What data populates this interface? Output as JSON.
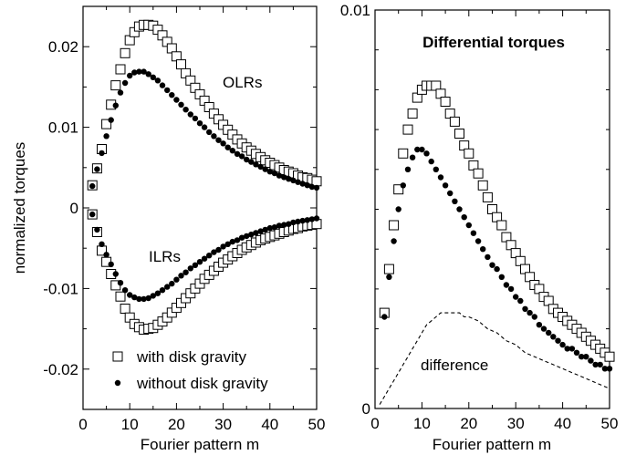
{
  "chart_data": [
    {
      "type": "scatter",
      "title": "",
      "xlabel": "Fourier pattern m",
      "ylabel": "normalized torques",
      "xlim": [
        0,
        50
      ],
      "ylim": [
        -0.025,
        0.025
      ],
      "xticks": [
        0,
        10,
        20,
        30,
        40,
        50
      ],
      "yticks": [
        -0.02,
        -0.01,
        0,
        0.01,
        0.02
      ],
      "xtick_labels": [
        "0",
        "10",
        "20",
        "30",
        "40",
        "50"
      ],
      "ytick_labels": [
        "-0.02",
        "-0.01",
        "0",
        "0.01",
        "0.02"
      ],
      "grid": false,
      "legend": {
        "position": "bottom-left",
        "entries": [
          {
            "label": "with disk gravity",
            "marker": "open-square"
          },
          {
            "label": "without disk gravity",
            "marker": "filled-circle"
          }
        ]
      },
      "annotations": [
        "OLRs",
        "ILRs"
      ],
      "series": [
        {
          "name": "with disk gravity",
          "group": "OLRs",
          "marker": "open-square",
          "x": [
            2,
            3,
            4,
            5,
            6,
            7,
            8,
            9,
            10,
            11,
            12,
            13,
            14,
            15,
            16,
            17,
            18,
            19,
            20,
            21,
            22,
            23,
            24,
            25,
            26,
            27,
            28,
            29,
            30,
            31,
            32,
            33,
            34,
            35,
            36,
            37,
            38,
            39,
            40,
            41,
            42,
            43,
            44,
            45,
            46,
            47,
            48,
            49,
            50
          ],
          "y": [
            0.0028,
            0.0049,
            0.0073,
            0.0104,
            0.0128,
            0.0152,
            0.0172,
            0.0192,
            0.0208,
            0.0218,
            0.0225,
            0.0227,
            0.0227,
            0.0226,
            0.0221,
            0.0214,
            0.0206,
            0.0198,
            0.0188,
            0.0178,
            0.0167,
            0.0158,
            0.0149,
            0.0141,
            0.0133,
            0.0125,
            0.0117,
            0.011,
            0.0103,
            0.0097,
            0.0091,
            0.0085,
            0.008,
            0.0075,
            0.0071,
            0.0067,
            0.0063,
            0.0059,
            0.0056,
            0.0053,
            0.005,
            0.0047,
            0.0045,
            0.0043,
            0.004,
            0.0038,
            0.0037,
            0.0035,
            0.0033
          ]
        },
        {
          "name": "without disk gravity",
          "group": "OLRs",
          "marker": "filled-circle",
          "x": [
            2,
            3,
            4,
            5,
            6,
            7,
            8,
            9,
            10,
            11,
            12,
            13,
            14,
            15,
            16,
            17,
            18,
            19,
            20,
            21,
            22,
            23,
            24,
            25,
            26,
            27,
            28,
            29,
            30,
            31,
            32,
            33,
            34,
            35,
            36,
            37,
            38,
            39,
            40,
            41,
            42,
            43,
            44,
            45,
            46,
            47,
            48,
            49,
            50
          ],
          "y": [
            0.0027,
            0.0048,
            0.0068,
            0.0089,
            0.0109,
            0.0127,
            0.0143,
            0.0155,
            0.0164,
            0.0168,
            0.0169,
            0.0169,
            0.0166,
            0.0162,
            0.0158,
            0.0152,
            0.0146,
            0.014,
            0.0134,
            0.0128,
            0.0122,
            0.0116,
            0.0111,
            0.0105,
            0.01,
            0.0094,
            0.0089,
            0.0084,
            0.008,
            0.0075,
            0.0071,
            0.0067,
            0.0064,
            0.006,
            0.0057,
            0.0054,
            0.0051,
            0.0048,
            0.0045,
            0.0043,
            0.004,
            0.0038,
            0.0036,
            0.0034,
            0.0032,
            0.003,
            0.0028,
            0.0026,
            0.0025
          ]
        },
        {
          "name": "with disk gravity",
          "group": "ILRs",
          "marker": "open-square",
          "x": [
            2,
            3,
            4,
            5,
            6,
            7,
            8,
            9,
            10,
            11,
            12,
            13,
            14,
            15,
            16,
            17,
            18,
            19,
            20,
            21,
            22,
            23,
            24,
            25,
            26,
            27,
            28,
            29,
            30,
            31,
            32,
            33,
            34,
            35,
            36,
            37,
            38,
            39,
            40,
            41,
            42,
            43,
            44,
            45,
            46,
            47,
            48,
            49,
            50
          ],
          "y": [
            -0.0008,
            -0.003,
            -0.0053,
            -0.0067,
            -0.0082,
            -0.0096,
            -0.011,
            -0.0125,
            -0.0136,
            -0.0144,
            -0.0148,
            -0.0151,
            -0.015,
            -0.0149,
            -0.0145,
            -0.0141,
            -0.0136,
            -0.013,
            -0.0124,
            -0.0118,
            -0.0112,
            -0.0106,
            -0.01,
            -0.0094,
            -0.0088,
            -0.0083,
            -0.0078,
            -0.0073,
            -0.0068,
            -0.0064,
            -0.006,
            -0.0056,
            -0.0052,
            -0.0049,
            -0.0046,
            -0.0043,
            -0.004,
            -0.0038,
            -0.0036,
            -0.0034,
            -0.0032,
            -0.003,
            -0.0028,
            -0.0026,
            -0.0025,
            -0.0023,
            -0.0022,
            -0.0021,
            -0.002
          ]
        },
        {
          "name": "without disk gravity",
          "group": "ILRs",
          "marker": "filled-circle",
          "x": [
            2,
            3,
            4,
            5,
            6,
            7,
            8,
            9,
            10,
            11,
            12,
            13,
            14,
            15,
            16,
            17,
            18,
            19,
            20,
            21,
            22,
            23,
            24,
            25,
            26,
            27,
            28,
            29,
            30,
            31,
            32,
            33,
            34,
            35,
            36,
            37,
            38,
            39,
            40,
            41,
            42,
            43,
            44,
            45,
            46,
            47,
            48,
            49,
            50
          ],
          "y": [
            -0.0008,
            -0.0027,
            -0.0045,
            -0.0058,
            -0.007,
            -0.0082,
            -0.0093,
            -0.0102,
            -0.0108,
            -0.0111,
            -0.0113,
            -0.0113,
            -0.0112,
            -0.0109,
            -0.0106,
            -0.0102,
            -0.0098,
            -0.0094,
            -0.0089,
            -0.0084,
            -0.008,
            -0.0075,
            -0.0071,
            -0.0067,
            -0.0063,
            -0.0059,
            -0.0055,
            -0.0052,
            -0.0048,
            -0.0045,
            -0.0042,
            -0.004,
            -0.0037,
            -0.0035,
            -0.0033,
            -0.0031,
            -0.0029,
            -0.0027,
            -0.0025,
            -0.0024,
            -0.0022,
            -0.0021,
            -0.002,
            -0.0018,
            -0.0017,
            -0.0016,
            -0.0015,
            -0.0014,
            -0.0013
          ]
        }
      ]
    },
    {
      "type": "scatter",
      "title": "Differential torques",
      "xlabel": "Fourier pattern m",
      "ylabel": "",
      "xlim": [
        0,
        50
      ],
      "ylim": [
        0,
        0.01
      ],
      "xticks": [
        0,
        10,
        20,
        30,
        40,
        50
      ],
      "yticks": [
        0,
        0.01
      ],
      "xtick_labels": [
        "0",
        "10",
        "20",
        "30",
        "40",
        "50"
      ],
      "ytick_labels": [
        "0",
        "0.01"
      ],
      "grid": false,
      "annotations": [
        "difference"
      ],
      "series": [
        {
          "name": "with disk gravity",
          "marker": "open-square",
          "x": [
            2,
            3,
            4,
            5,
            6,
            7,
            8,
            9,
            10,
            11,
            12,
            13,
            14,
            15,
            16,
            17,
            18,
            19,
            20,
            21,
            22,
            23,
            24,
            25,
            26,
            27,
            28,
            29,
            30,
            31,
            32,
            33,
            34,
            35,
            36,
            37,
            38,
            39,
            40,
            41,
            42,
            43,
            44,
            45,
            46,
            47,
            48,
            49,
            50
          ],
          "y": [
            0.0024,
            0.0035,
            0.0046,
            0.0055,
            0.0064,
            0.007,
            0.0074,
            0.0078,
            0.008,
            0.0081,
            0.0081,
            0.0081,
            0.0079,
            0.0077,
            0.0074,
            0.0072,
            0.0069,
            0.0066,
            0.0064,
            0.0061,
            0.0059,
            0.0056,
            0.0053,
            0.005,
            0.0048,
            0.0046,
            0.0043,
            0.0041,
            0.0039,
            0.0037,
            0.0035,
            0.0033,
            0.0031,
            0.003,
            0.0028,
            0.0027,
            0.0025,
            0.0024,
            0.0023,
            0.0022,
            0.0021,
            0.002,
            0.0019,
            0.0018,
            0.0017,
            0.0016,
            0.0015,
            0.0014,
            0.0013
          ]
        },
        {
          "name": "without disk gravity",
          "marker": "filled-circle",
          "x": [
            2,
            3,
            4,
            5,
            6,
            7,
            8,
            9,
            10,
            11,
            12,
            13,
            14,
            15,
            16,
            17,
            18,
            19,
            20,
            21,
            22,
            23,
            24,
            25,
            26,
            27,
            28,
            29,
            30,
            31,
            32,
            33,
            34,
            35,
            36,
            37,
            38,
            39,
            40,
            41,
            42,
            43,
            44,
            45,
            46,
            47,
            48,
            49,
            50
          ],
          "y": [
            0.0023,
            0.0033,
            0.0042,
            0.005,
            0.0056,
            0.006,
            0.0063,
            0.0065,
            0.0065,
            0.0064,
            0.0062,
            0.006,
            0.0058,
            0.0056,
            0.0054,
            0.0052,
            0.005,
            0.0048,
            0.0046,
            0.0044,
            0.0042,
            0.004,
            0.0038,
            0.0036,
            0.0035,
            0.0033,
            0.0031,
            0.003,
            0.0028,
            0.0027,
            0.0025,
            0.0024,
            0.0023,
            0.0021,
            0.002,
            0.0019,
            0.0018,
            0.0017,
            0.0016,
            0.0015,
            0.0015,
            0.0014,
            0.0013,
            0.0013,
            0.0012,
            0.0011,
            0.0011,
            0.001,
            0.001
          ]
        },
        {
          "name": "difference",
          "marker": "dashed-line",
          "x": [
            1,
            2,
            3,
            4,
            5,
            6,
            7,
            8,
            9,
            10,
            11,
            12,
            13,
            14,
            15,
            16,
            17,
            18,
            19,
            20,
            22,
            24,
            26,
            28,
            30,
            32,
            34,
            36,
            38,
            40,
            42,
            44,
            46,
            48,
            50
          ],
          "y": [
            0.0001,
            0.0003,
            0.0005,
            0.0007,
            0.0009,
            0.0011,
            0.0013,
            0.0015,
            0.0017,
            0.0019,
            0.0021,
            0.0022,
            0.0023,
            0.0024,
            0.0024,
            0.0024,
            0.0024,
            0.0024,
            0.0023,
            0.0023,
            0.0022,
            0.002,
            0.0019,
            0.0017,
            0.0016,
            0.0014,
            0.0013,
            0.0012,
            0.0011,
            0.001,
            0.0009,
            0.0008,
            0.0007,
            0.0006,
            0.0005
          ]
        }
      ]
    }
  ]
}
